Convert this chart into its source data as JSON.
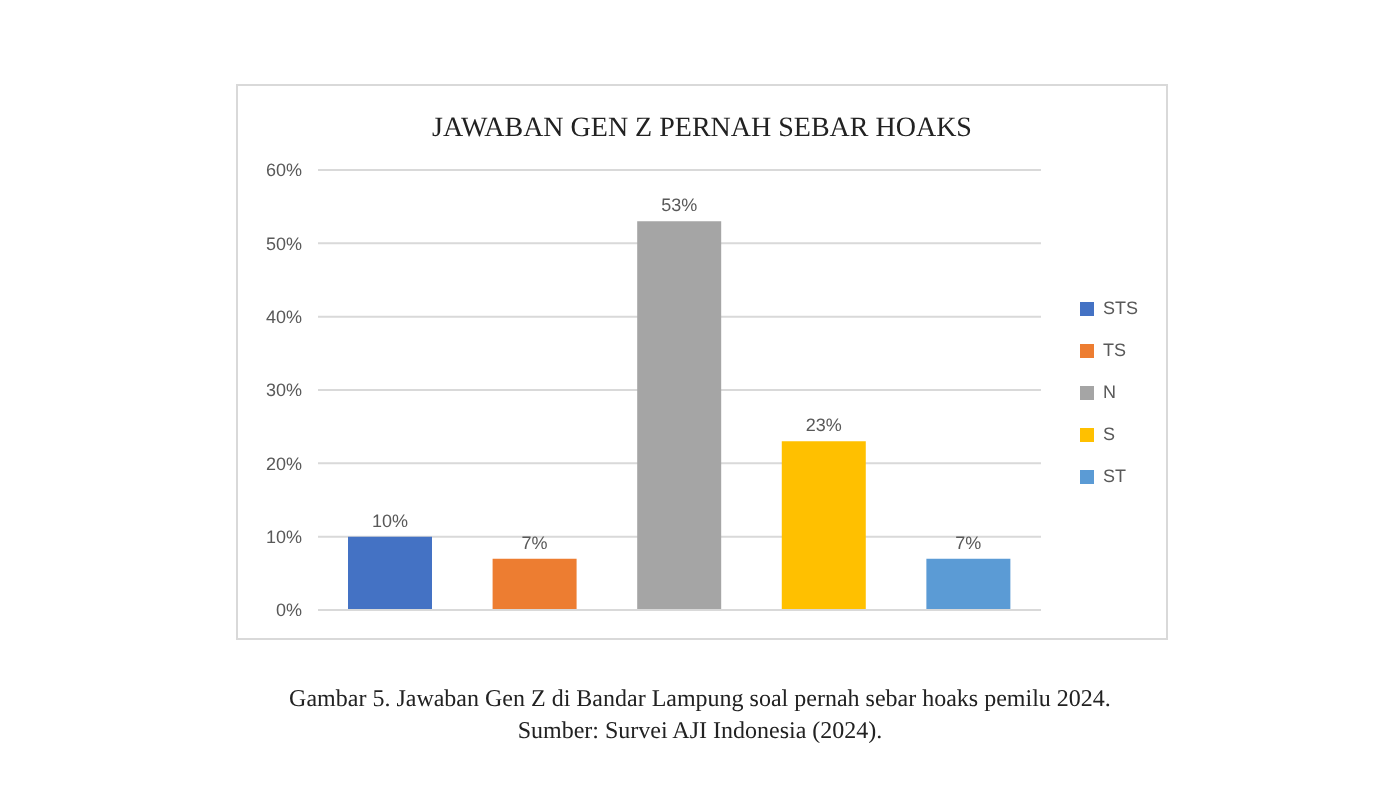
{
  "chart_data": {
    "type": "bar",
    "title": "JAWABAN GEN Z PERNAH SEBAR HOAKS",
    "categories": [
      null,
      null,
      null,
      null,
      null
    ],
    "series": [
      {
        "name": "STS",
        "color": "#4472c4",
        "values": [
          10,
          null,
          null,
          null,
          null
        ],
        "value_labels": [
          "10%",
          null,
          null,
          null,
          null
        ]
      },
      {
        "name": "TS",
        "color": "#ed7d31",
        "values": [
          null,
          7,
          null,
          null,
          null
        ],
        "value_labels": [
          null,
          "7%",
          null,
          null,
          null
        ]
      },
      {
        "name": "N",
        "color": "#a5a5a5",
        "values": [
          null,
          null,
          53,
          null,
          null
        ],
        "value_labels": [
          null,
          null,
          "53%",
          null,
          null
        ]
      },
      {
        "name": "S",
        "color": "#ffc000",
        "values": [
          null,
          null,
          null,
          23,
          null
        ],
        "value_labels": [
          null,
          null,
          null,
          "23%",
          null
        ]
      },
      {
        "name": "ST",
        "color": "#5b9bd5",
        "values": [
          null,
          null,
          null,
          null,
          7
        ],
        "value_labels": [
          null,
          null,
          null,
          null,
          "7%"
        ]
      }
    ],
    "ylim": [
      0,
      60
    ],
    "yticks": [
      {
        "value": 0,
        "label": "0%"
      },
      {
        "value": 10,
        "label": "10%"
      },
      {
        "value": 20,
        "label": "20%"
      },
      {
        "value": 30,
        "label": "30%"
      },
      {
        "value": 40,
        "label": "40%"
      },
      {
        "value": 50,
        "label": "50%"
      },
      {
        "value": 60,
        "label": "60%"
      }
    ],
    "grid": "y",
    "legend": "right",
    "annotations": [
      "Gambar 5. Jawaban Gen Z di Bandar Lampung soal pernah sebar hoaks pemilu 2024.",
      "Sumber: Survei AJI Indonesia (2024)."
    ]
  }
}
